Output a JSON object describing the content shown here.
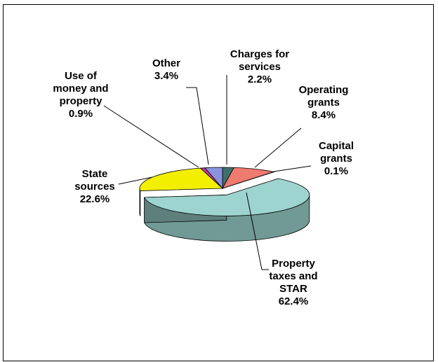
{
  "chart_data": {
    "type": "pie",
    "style": "3d-exploded-oblique",
    "title": "",
    "legend": "none",
    "slices": [
      {
        "label_lines": [
          "Charges for",
          "services",
          "2.2%"
        ],
        "value": 2.2,
        "color": "#3f6f6b"
      },
      {
        "label_lines": [
          "Operating",
          "grants",
          "8.4%"
        ],
        "value": 8.4,
        "color": "#ee7a70"
      },
      {
        "label_lines": [
          "Capital",
          "grants",
          "0.1%"
        ],
        "value": 0.1,
        "color": "#3f6f6b"
      },
      {
        "label_lines": [
          "Property",
          "taxes and",
          "STAR",
          "62.4%"
        ],
        "value": 62.4,
        "color": "#9dd4cf"
      },
      {
        "label_lines": [
          "State",
          "sources",
          "22.6%"
        ],
        "value": 22.6,
        "color": "#f2f000"
      },
      {
        "label_lines": [
          "Use of",
          "money and",
          "property",
          "0.9%"
        ],
        "value": 0.9,
        "color": "#cc33aa"
      },
      {
        "label_lines": [
          "Other",
          "3.4%"
        ],
        "value": 3.4,
        "color": "#8c93dc"
      }
    ]
  }
}
